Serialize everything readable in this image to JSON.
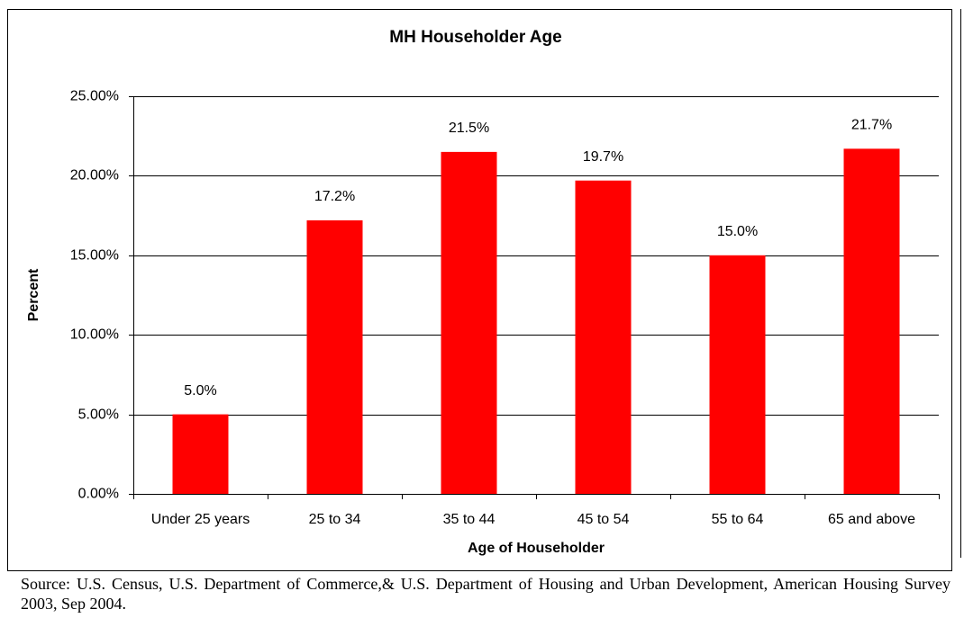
{
  "chart_data": {
    "type": "bar",
    "title": "MH Householder Age",
    "categories": [
      "Under 25 years",
      "25 to 34",
      "35 to 44",
      "45 to 54",
      "55 to 64",
      "65 and above"
    ],
    "values": [
      5.0,
      17.2,
      21.5,
      19.7,
      15.0,
      21.7
    ],
    "value_labels": [
      "5.0%",
      "17.2%",
      "21.5%",
      "19.7%",
      "15.0%",
      "21.7%"
    ],
    "color": "#ff0000",
    "x_label": "Age of Householder",
    "y_label": "Percent",
    "ylim": [
      0,
      25
    ],
    "yticks": [
      {
        "value": 0,
        "label": "0.00%"
      },
      {
        "value": 5,
        "label": "5.00%"
      },
      {
        "value": 10,
        "label": "10.00%"
      },
      {
        "value": 15,
        "label": "15.00%"
      },
      {
        "value": 20,
        "label": "20.00%"
      },
      {
        "value": 25,
        "label": "25.00%"
      }
    ],
    "grid": true
  },
  "source": "Source: U.S. Census, U.S. Department of Commerce,& U.S. Department of Housing and Urban Development, American Housing Survey 2003, Sep 2004."
}
